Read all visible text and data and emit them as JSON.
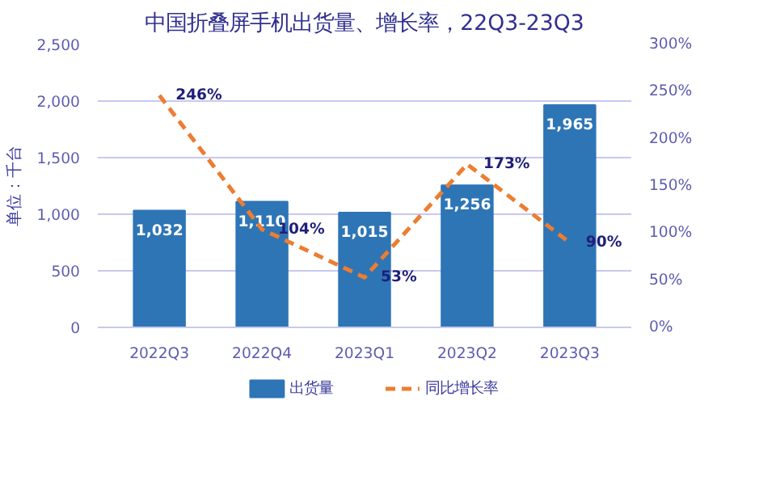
{
  "chart_data": {
    "type": "bar",
    "title": "中国折叠屏手机出货量、增长率，22Q3-23Q3",
    "ylabel": "单位：千台",
    "categories": [
      "2022Q3",
      "2022Q4",
      "2023Q1",
      "2023Q2",
      "2023Q3"
    ],
    "series": [
      {
        "name": "出货量",
        "color": "#2e75b6",
        "values": [
          1032,
          1110,
          1015,
          1256,
          1965
        ],
        "value_labels": [
          "1,032",
          "1,110",
          "1,015",
          "1,256",
          "1,965"
        ]
      },
      {
        "name": "同比增长率",
        "type": "line",
        "axis": "y2",
        "color": "#ed7d31",
        "line_style": "dashed",
        "marker": "none",
        "values": [
          246,
          104,
          53,
          173,
          90
        ],
        "value_labels": [
          "246%",
          "104%",
          "53%",
          "173%",
          "90%"
        ]
      }
    ],
    "ylim": [
      0,
      2500
    ],
    "yticks": [
      {
        "value": 0,
        "label": "0"
      },
      {
        "value": 500,
        "label": "500"
      },
      {
        "value": 1000,
        "label": "1,000"
      },
      {
        "value": 1500,
        "label": "1,500"
      },
      {
        "value": 2000,
        "label": "2,000"
      },
      {
        "value": 2500,
        "label": "2,500"
      }
    ],
    "y2lim": [
      0,
      300
    ],
    "y2ticks": [
      {
        "value": 0,
        "label": "0%"
      },
      {
        "value": 50,
        "label": "50%"
      },
      {
        "value": 100,
        "label": "100%"
      },
      {
        "value": 150,
        "label": "150%"
      },
      {
        "value": 200,
        "label": "200%"
      },
      {
        "value": 250,
        "label": "250%"
      },
      {
        "value": 300,
        "label": "300%"
      }
    ],
    "grid": "y",
    "legend": "bottom"
  }
}
